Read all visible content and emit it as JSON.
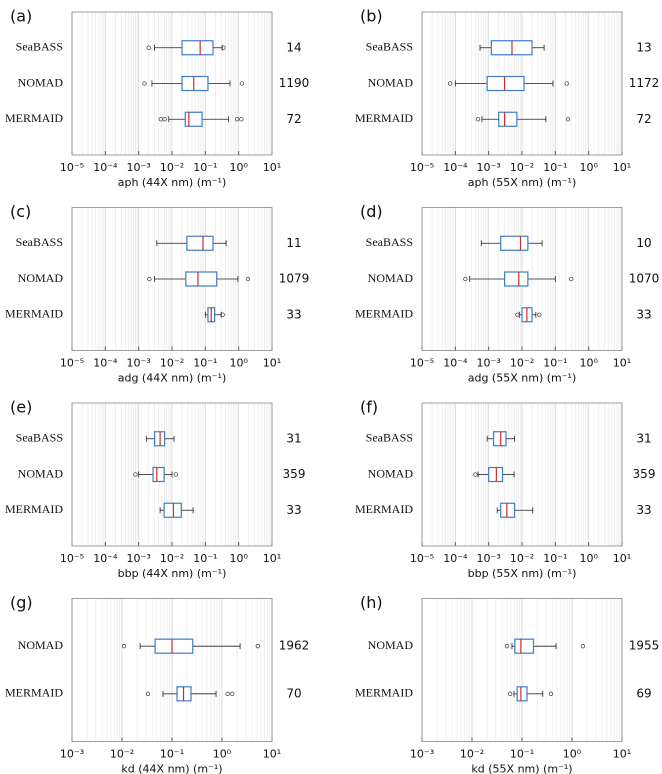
{
  "chart_data": [
    {
      "type": "box",
      "label": "(a)",
      "xlabel": "aph (44X nm) (m⁻¹)",
      "categories": [
        "SeaBASS",
        "NOMAD",
        "MERMAID"
      ],
      "counts": [
        14,
        1190,
        72
      ],
      "boxes": [
        {
          "whislo": 0.003,
          "q1": 0.02,
          "med": 0.07,
          "q3": 0.17,
          "whishi": 0.32,
          "fliers": [
            0.002,
            0.35
          ]
        },
        {
          "whislo": 0.0025,
          "q1": 0.02,
          "med": 0.045,
          "q3": 0.12,
          "whishi": 0.55,
          "fliers": [
            0.0015,
            1.25
          ]
        },
        {
          "whislo": 0.008,
          "q1": 0.025,
          "med": 0.032,
          "q3": 0.08,
          "whishi": 0.5,
          "fliers": [
            0.0046,
            0.006,
            0.9,
            1.2
          ]
        }
      ],
      "xlim": [
        1e-05,
        10
      ],
      "xscale": "log",
      "grid": true,
      "box_color": "#3d7cc9",
      "median_color": "#d62728",
      "xticks": [
        {
          "value": 1e-05,
          "label": "10⁻⁵"
        },
        {
          "value": 0.0001,
          "label": "10⁻⁴"
        },
        {
          "value": 0.001,
          "label": "10⁻³"
        },
        {
          "value": 0.01,
          "label": "10⁻²"
        },
        {
          "value": 0.1,
          "label": "10⁻¹"
        },
        {
          "value": 1,
          "label": "10⁰"
        },
        {
          "value": 10,
          "label": "10¹"
        }
      ]
    },
    {
      "type": "box",
      "label": "(b)",
      "xlabel": "aph (55X nm) (m⁻¹)",
      "categories": [
        "SeaBASS",
        "NOMAD",
        "MERMAID"
      ],
      "counts": [
        13,
        1172,
        72
      ],
      "boxes": [
        {
          "whislo": 0.00055,
          "q1": 0.0012,
          "med": 0.005,
          "q3": 0.02,
          "whishi": 0.046,
          "fliers": []
        },
        {
          "whislo": 0.0001,
          "q1": 0.0009,
          "med": 0.003,
          "q3": 0.0115,
          "whishi": 0.085,
          "fliers": [
            7e-05,
            0.22
          ]
        },
        {
          "whislo": 0.00063,
          "q1": 0.002,
          "med": 0.003,
          "q3": 0.007,
          "whishi": 0.052,
          "fliers": [
            0.00048,
            0.24
          ]
        }
      ],
      "xlim": [
        1e-05,
        10
      ],
      "xscale": "log",
      "grid": true,
      "box_color": "#3d7cc9",
      "median_color": "#d62728",
      "xticks": [
        {
          "value": 1e-05,
          "label": "10⁻⁵"
        },
        {
          "value": 0.0001,
          "label": "10⁻⁴"
        },
        {
          "value": 0.001,
          "label": "10⁻³"
        },
        {
          "value": 0.01,
          "label": "10⁻²"
        },
        {
          "value": 0.1,
          "label": "10⁻¹"
        },
        {
          "value": 1,
          "label": "10⁰"
        },
        {
          "value": 10,
          "label": "10¹"
        }
      ]
    },
    {
      "type": "box",
      "label": "(c)",
      "xlabel": "adg (44X nm) (m⁻¹)",
      "categories": [
        "SeaBASS",
        "NOMAD",
        "MERMAID"
      ],
      "counts": [
        11,
        1079,
        33
      ],
      "boxes": [
        {
          "whislo": 0.0035,
          "q1": 0.028,
          "med": 0.085,
          "q3": 0.17,
          "whishi": 0.42,
          "fliers": []
        },
        {
          "whislo": 0.003,
          "q1": 0.026,
          "med": 0.06,
          "q3": 0.22,
          "whishi": 0.95,
          "fliers": [
            0.0021,
            1.9
          ]
        },
        {
          "whislo": 0.1,
          "q1": 0.12,
          "med": 0.15,
          "q3": 0.19,
          "whishi": 0.3,
          "fliers": [
            0.33
          ]
        }
      ],
      "xlim": [
        1e-05,
        10
      ],
      "xscale": "log",
      "grid": true,
      "box_color": "#3d7cc9",
      "median_color": "#d62728",
      "xticks": [
        {
          "value": 1e-05,
          "label": "10⁻⁵"
        },
        {
          "value": 0.0001,
          "label": "10⁻⁴"
        },
        {
          "value": 0.001,
          "label": "10⁻³"
        },
        {
          "value": 0.01,
          "label": "10⁻²"
        },
        {
          "value": 0.1,
          "label": "10⁻¹"
        },
        {
          "value": 1,
          "label": "10⁰"
        },
        {
          "value": 10,
          "label": "10¹"
        }
      ]
    },
    {
      "type": "box",
      "label": "(d)",
      "xlabel": "adg (55X nm) (m⁻¹)",
      "categories": [
        "SeaBASS",
        "NOMAD",
        "MERMAID"
      ],
      "counts": [
        10,
        1070,
        33
      ],
      "boxes": [
        {
          "whislo": 0.0006,
          "q1": 0.0023,
          "med": 0.009,
          "q3": 0.015,
          "whishi": 0.04,
          "fliers": []
        },
        {
          "whislo": 0.00027,
          "q1": 0.003,
          "med": 0.008,
          "q3": 0.015,
          "whishi": 0.1,
          "fliers": [
            0.0002,
            0.3
          ]
        },
        {
          "whislo": 0.0083,
          "q1": 0.01,
          "med": 0.014,
          "q3": 0.02,
          "whishi": 0.026,
          "fliers": [
            0.0073,
            0.033
          ]
        }
      ],
      "xlim": [
        1e-05,
        10
      ],
      "xscale": "log",
      "grid": true,
      "box_color": "#3d7cc9",
      "median_color": "#d62728",
      "xticks": [
        {
          "value": 1e-05,
          "label": "10⁻⁵"
        },
        {
          "value": 0.0001,
          "label": "10⁻⁴"
        },
        {
          "value": 0.001,
          "label": "10⁻³"
        },
        {
          "value": 0.01,
          "label": "10⁻²"
        },
        {
          "value": 0.1,
          "label": "10⁻¹"
        },
        {
          "value": 1,
          "label": "10⁰"
        },
        {
          "value": 10,
          "label": "10¹"
        }
      ]
    },
    {
      "type": "box",
      "label": "(e)",
      "xlabel": "bbp (44X nm) (m⁻¹)",
      "categories": [
        "SeaBASS",
        "NOMAD",
        "MERMAID"
      ],
      "counts": [
        31,
        359,
        33
      ],
      "boxes": [
        {
          "whislo": 0.0017,
          "q1": 0.003,
          "med": 0.0044,
          "q3": 0.006,
          "whishi": 0.0115,
          "fliers": []
        },
        {
          "whislo": 0.001,
          "q1": 0.0027,
          "med": 0.0035,
          "q3": 0.0058,
          "whishi": 0.01,
          "fliers": [
            0.0008,
            0.013
          ]
        },
        {
          "whislo": 0.0044,
          "q1": 0.0058,
          "med": 0.011,
          "q3": 0.019,
          "whishi": 0.043,
          "fliers": []
        }
      ],
      "xlim": [
        1e-05,
        10
      ],
      "xscale": "log",
      "grid": true,
      "box_color": "#3d7cc9",
      "median_color": "#d62728",
      "xticks": [
        {
          "value": 1e-05,
          "label": "10⁻⁵"
        },
        {
          "value": 0.0001,
          "label": "10⁻⁴"
        },
        {
          "value": 0.001,
          "label": "10⁻³"
        },
        {
          "value": 0.01,
          "label": "10⁻²"
        },
        {
          "value": 0.1,
          "label": "10⁻¹"
        },
        {
          "value": 1,
          "label": "10⁰"
        },
        {
          "value": 10,
          "label": "10¹"
        }
      ]
    },
    {
      "type": "box",
      "label": "(f)",
      "xlabel": "bbp (55X nm) (m⁻¹)",
      "categories": [
        "SeaBASS",
        "NOMAD",
        "MERMAID"
      ],
      "counts": [
        31,
        359,
        33
      ],
      "boxes": [
        {
          "whislo": 0.0009,
          "q1": 0.0014,
          "med": 0.0023,
          "q3": 0.0033,
          "whishi": 0.006,
          "fliers": []
        },
        {
          "whislo": 0.00048,
          "q1": 0.001,
          "med": 0.0017,
          "q3": 0.0026,
          "whishi": 0.0058,
          "fliers": [
            0.0004
          ]
        },
        {
          "whislo": 0.0018,
          "q1": 0.0023,
          "med": 0.0035,
          "q3": 0.006,
          "whishi": 0.021,
          "fliers": []
        }
      ],
      "xlim": [
        1e-05,
        10
      ],
      "xscale": "log",
      "grid": true,
      "box_color": "#3d7cc9",
      "median_color": "#d62728",
      "xticks": [
        {
          "value": 1e-05,
          "label": "10⁻⁵"
        },
        {
          "value": 0.0001,
          "label": "10⁻⁴"
        },
        {
          "value": 0.001,
          "label": "10⁻³"
        },
        {
          "value": 0.01,
          "label": "10⁻²"
        },
        {
          "value": 0.1,
          "label": "10⁻¹"
        },
        {
          "value": 1,
          "label": "10⁰"
        },
        {
          "value": 10,
          "label": "10¹"
        }
      ]
    },
    {
      "type": "box",
      "label": "(g)",
      "xlabel": "kd (44X nm) (m⁻¹)",
      "categories": [
        "NOMAD",
        "MERMAID"
      ],
      "counts": [
        1962,
        70
      ],
      "boxes": [
        {
          "whislo": 0.023,
          "q1": 0.046,
          "med": 0.1,
          "q3": 0.26,
          "whishi": 2.3,
          "fliers": [
            0.011,
            5.2
          ]
        },
        {
          "whislo": 0.066,
          "q1": 0.126,
          "med": 0.17,
          "q3": 0.24,
          "whishi": 0.76,
          "fliers": [
            0.033,
            1.3,
            1.6
          ]
        }
      ],
      "xlim": [
        0.001,
        10
      ],
      "xscale": "log",
      "grid": true,
      "box_color": "#3d7cc9",
      "median_color": "#d62728",
      "xticks": [
        {
          "value": 0.001,
          "label": "10⁻³"
        },
        {
          "value": 0.01,
          "label": "10⁻²"
        },
        {
          "value": 0.1,
          "label": "10⁻¹"
        },
        {
          "value": 1,
          "label": "10⁰"
        },
        {
          "value": 10,
          "label": "10¹"
        }
      ]
    },
    {
      "type": "box",
      "label": "(h)",
      "xlabel": "kd (55X nm) (m⁻¹)",
      "categories": [
        "NOMAD",
        "MERMAID"
      ],
      "counts": [
        1955,
        69
      ],
      "boxes": [
        {
          "whislo": 0.063,
          "q1": 0.072,
          "med": 0.095,
          "q3": 0.17,
          "whishi": 0.48,
          "fliers": [
            0.05,
            1.65
          ]
        },
        {
          "whislo": 0.069,
          "q1": 0.08,
          "med": 0.095,
          "q3": 0.126,
          "whishi": 0.26,
          "fliers": [
            0.058,
            0.38
          ]
        }
      ],
      "xlim": [
        0.001,
        10
      ],
      "xscale": "log",
      "grid": true,
      "box_color": "#3d7cc9",
      "median_color": "#d62728",
      "xticks": [
        {
          "value": 0.001,
          "label": "10⁻³"
        },
        {
          "value": 0.01,
          "label": "10⁻²"
        },
        {
          "value": 0.1,
          "label": "10⁻¹"
        },
        {
          "value": 1,
          "label": "10⁰"
        },
        {
          "value": 10,
          "label": "10¹"
        }
      ]
    }
  ]
}
